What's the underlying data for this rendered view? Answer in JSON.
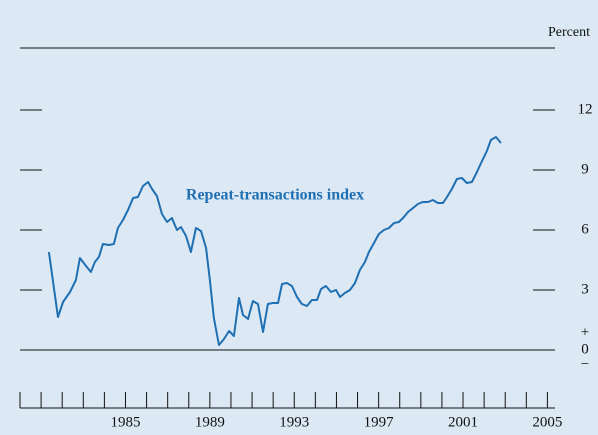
{
  "chart_data": {
    "type": "line",
    "y_axis_label": "Percent",
    "annotation": "Repeat-transactions index",
    "zero_signs": [
      "+",
      "−"
    ],
    "x": [
      1981.37,
      1981.8,
      1982.04,
      1982.37,
      1982.65,
      1982.84,
      1983.13,
      1983.36,
      1983.55,
      1983.74,
      1983.93,
      1984.22,
      1984.45,
      1984.64,
      1984.88,
      1985.12,
      1985.36,
      1985.59,
      1985.83,
      1986.07,
      1986.26,
      1986.49,
      1986.73,
      1986.97,
      1987.2,
      1987.44,
      1987.63,
      1987.87,
      1988.1,
      1988.34,
      1988.58,
      1988.82,
      1989.0,
      1989.19,
      1989.43,
      1989.67,
      1989.91,
      1990.14,
      1990.38,
      1990.57,
      1990.81,
      1991.04,
      1991.28,
      1991.52,
      1991.75,
      1991.99,
      1992.23,
      1992.42,
      1992.65,
      1992.89,
      1993.13,
      1993.36,
      1993.6,
      1993.84,
      1994.08,
      1994.27,
      1994.5,
      1994.74,
      1994.98,
      1995.17,
      1995.4,
      1995.64,
      1995.88,
      1996.11,
      1996.35,
      1996.54,
      1996.78,
      1997.01,
      1997.25,
      1997.49,
      1997.73,
      1997.96,
      1998.2,
      1998.39,
      1998.63,
      1998.86,
      1999.1,
      1999.34,
      1999.57,
      1999.81,
      2000.05,
      2000.24,
      2000.47,
      2000.71,
      2000.95,
      2001.18,
      2001.42,
      2001.66,
      2001.9,
      2002.13,
      2002.32,
      2002.56,
      2002.8
    ],
    "series": [
      {
        "name": "Repeat-transactions index",
        "color": "#1f6fb2",
        "values": [
          4.9,
          1.65,
          2.4,
          2.9,
          3.5,
          4.6,
          4.2,
          3.9,
          4.4,
          4.65,
          5.3,
          5.25,
          5.3,
          6.1,
          6.5,
          7.0,
          7.6,
          7.65,
          8.2,
          8.4,
          8.05,
          7.7,
          6.8,
          6.4,
          6.6,
          6.0,
          6.15,
          5.7,
          4.9,
          6.1,
          5.95,
          5.1,
          3.5,
          1.6,
          0.25,
          0.55,
          0.95,
          0.7,
          2.6,
          1.75,
          1.55,
          2.45,
          2.3,
          0.9,
          2.3,
          2.35,
          2.35,
          3.3,
          3.35,
          3.2,
          2.65,
          2.3,
          2.2,
          2.5,
          2.5,
          3.05,
          3.2,
          2.9,
          3.0,
          2.65,
          2.85,
          3.0,
          3.35,
          4.0,
          4.4,
          4.9,
          5.35,
          5.8,
          6.0,
          6.1,
          6.35,
          6.4,
          6.65,
          6.9,
          7.1,
          7.3,
          7.4,
          7.4,
          7.5,
          7.35,
          7.35,
          7.65,
          8.05,
          8.55,
          8.6,
          8.35,
          8.4,
          8.9,
          9.45,
          9.95,
          10.5,
          10.65,
          10.35
        ]
      }
    ],
    "xlim": [
      1980,
      2005.36
    ],
    "xticks": [
      1985,
      1989,
      1993,
      1997,
      2001,
      2005
    ],
    "xminor_ticks": [
      1980,
      1981,
      1982,
      1983,
      1984,
      1985,
      1986,
      1987,
      1988,
      1989,
      1990,
      1991,
      1992,
      1993,
      1994,
      1995,
      1996,
      1997,
      1998,
      1999,
      2000,
      2001,
      2002,
      2003,
      2004,
      2005
    ],
    "ylim": [
      -2.9,
      15.1
    ],
    "yticks": [
      0,
      3,
      6,
      9,
      12
    ]
  }
}
